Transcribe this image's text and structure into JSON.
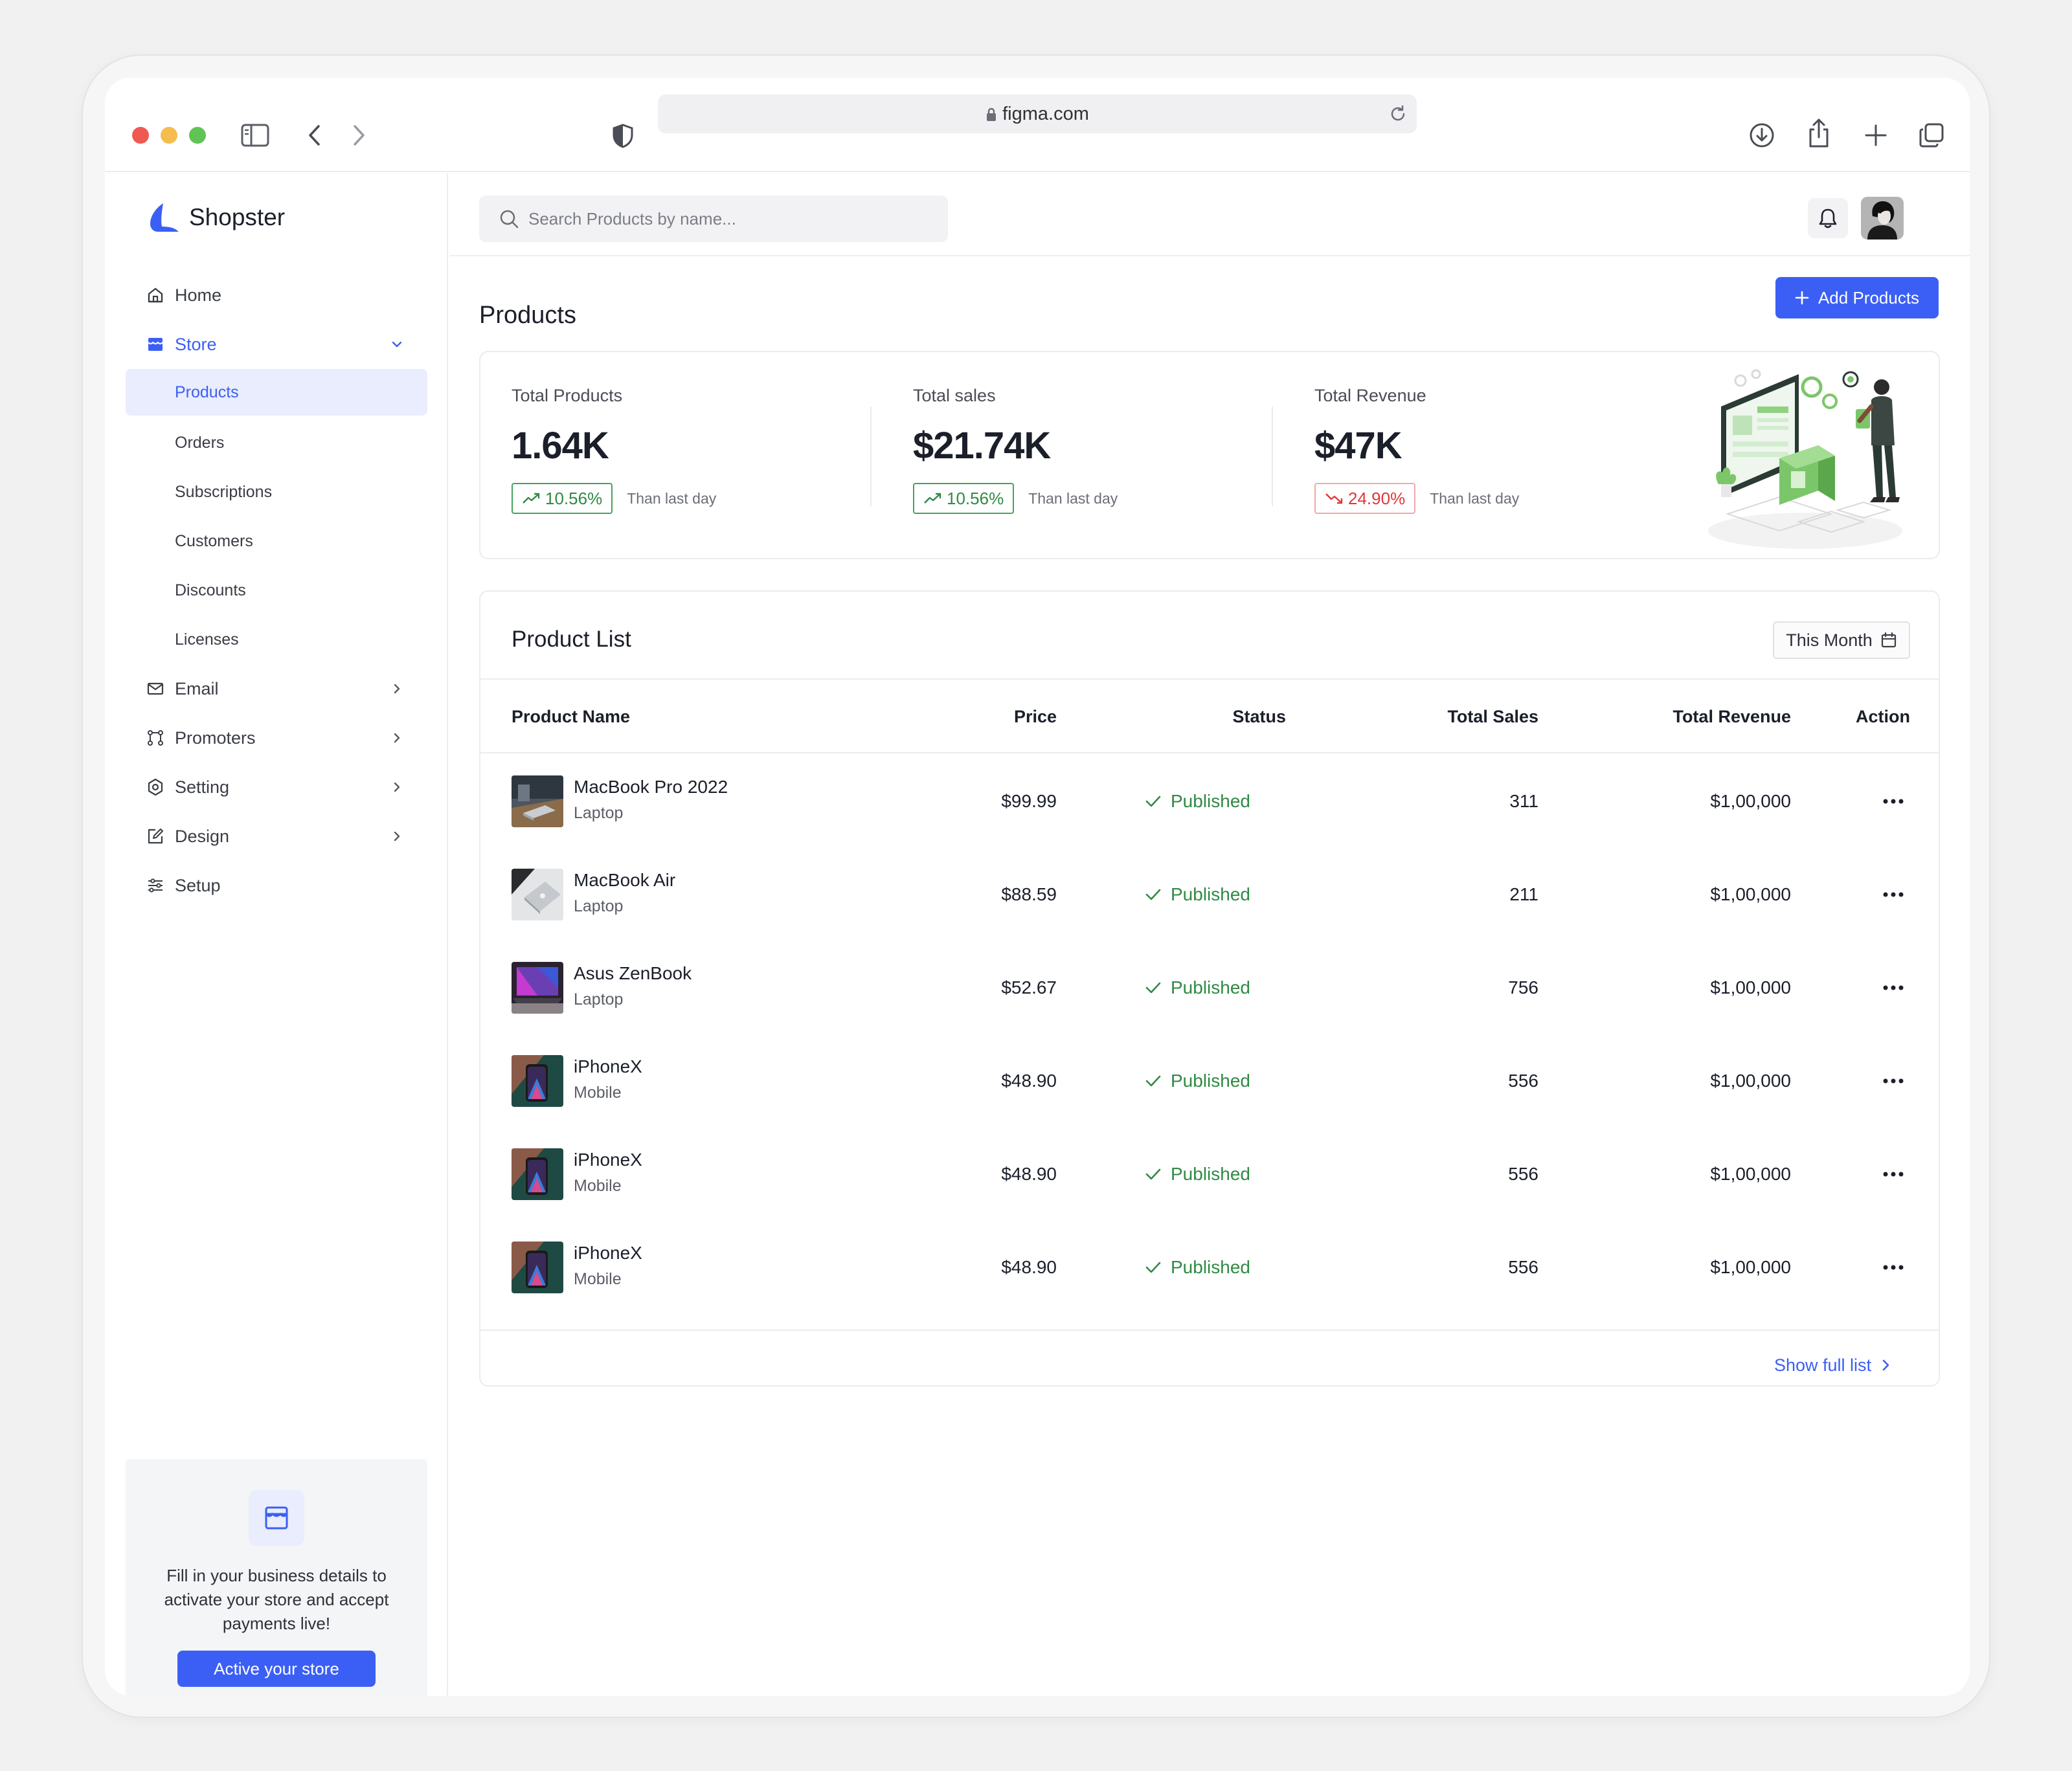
{
  "browser": {
    "url": "figma.com",
    "traffic_lights": {
      "close": "#ee5a52",
      "minimize": "#f5bd4f",
      "maximize": "#5fc454"
    }
  },
  "brand": {
    "name": "Shopster",
    "accent": "#3b5ff5"
  },
  "sidebar": {
    "nav": [
      {
        "label": "Home",
        "icon": "home-icon"
      },
      {
        "label": "Store",
        "icon": "store-icon",
        "expanded": true
      },
      {
        "label": "Email",
        "icon": "mail-icon"
      },
      {
        "label": "Promoters",
        "icon": "promoters-icon"
      },
      {
        "label": "Setting",
        "icon": "settings-icon"
      },
      {
        "label": "Design",
        "icon": "design-icon"
      },
      {
        "label": "Setup",
        "icon": "sliders-icon"
      }
    ],
    "store_sub": [
      {
        "label": "Products",
        "selected": true
      },
      {
        "label": "Orders"
      },
      {
        "label": "Subscriptions"
      },
      {
        "label": "Customers"
      },
      {
        "label": "Discounts"
      },
      {
        "label": "Licenses"
      }
    ],
    "promo": {
      "text": "Fill in your business details to activate your store and accept payments live!",
      "button": "Active your store"
    }
  },
  "topbar": {
    "search_placeholder": "Search Products by name..."
  },
  "page": {
    "title": "Products",
    "add_button": "Add Products"
  },
  "stats": [
    {
      "label": "Total Products",
      "value": "1.64K",
      "change": "10.56%",
      "trend": "up",
      "note": "Than last day"
    },
    {
      "label": "Total sales",
      "value": "$21.74K",
      "change": "10.56%",
      "trend": "up",
      "note": "Than last day"
    },
    {
      "label": "Total Revenue",
      "value": "$47K",
      "change": "24.90%",
      "trend": "down",
      "note": "Than last day"
    }
  ],
  "product_list": {
    "title": "Product List",
    "filter": "This Month",
    "columns": {
      "name": "Product Name",
      "price": "Price",
      "status": "Status",
      "sales": "Total Sales",
      "revenue": "Total Revenue",
      "action": "Action"
    },
    "rows": [
      {
        "name": "MacBook Pro 2022",
        "category": "Laptop",
        "price": "$99.99",
        "status": "Published",
        "sales": "311",
        "revenue": "$1,00,000",
        "thumb": "macbook-pro"
      },
      {
        "name": "MacBook Air",
        "category": "Laptop",
        "price": "$88.59",
        "status": "Published",
        "sales": "211",
        "revenue": "$1,00,000",
        "thumb": "macbook-air"
      },
      {
        "name": "Asus ZenBook",
        "category": "Laptop",
        "price": "$52.67",
        "status": "Published",
        "sales": "756",
        "revenue": "$1,00,000",
        "thumb": "zenbook"
      },
      {
        "name": "iPhoneX",
        "category": "Mobile",
        "price": "$48.90",
        "status": "Published",
        "sales": "556",
        "revenue": "$1,00,000",
        "thumb": "iphone"
      },
      {
        "name": "iPhoneX",
        "category": "Mobile",
        "price": "$48.90",
        "status": "Published",
        "sales": "556",
        "revenue": "$1,00,000",
        "thumb": "iphone"
      },
      {
        "name": "iPhoneX",
        "category": "Mobile",
        "price": "$48.90",
        "status": "Published",
        "sales": "556",
        "revenue": "$1,00,000",
        "thumb": "iphone"
      }
    ],
    "show_full": "Show full list"
  },
  "colors": {
    "published": "#2f8a44",
    "trend_up": "#2f8a44",
    "trend_down": "#e03838",
    "accent": "#3b5ff5"
  }
}
